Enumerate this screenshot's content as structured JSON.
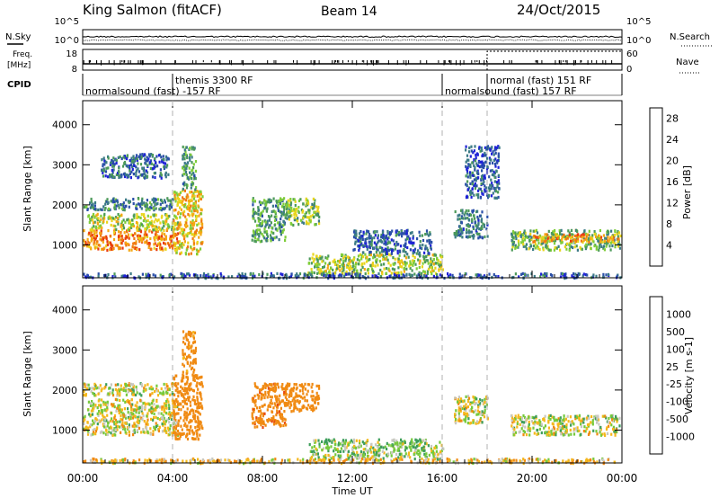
{
  "header": {
    "station": "King Salmon (fitACF)",
    "beam": "Beam 14",
    "date": "24/Oct/2015"
  },
  "top_panels": {
    "nsky_label": "N.Sky",
    "nsky_ticks": [
      "10^5",
      "10^0"
    ],
    "nsearch_label": "N.Search",
    "nsearch_ticks": [
      "10^5",
      "10^0"
    ],
    "freq_label_1": "Freq.",
    "freq_label_2": "[MHz]",
    "freq_ticks": [
      "18",
      "8"
    ],
    "nave_label": "Nave",
    "nave_ticks": [
      "60",
      "0"
    ],
    "cpid_label": "CPID",
    "cpid_segments": [
      {
        "label": "normalsound (fast) -157 RF",
        "start_hour": 0,
        "end_hour": 4
      },
      {
        "label": "themis 3300 RF",
        "start_hour": 4,
        "end_hour": 16
      },
      {
        "label": "normalsound (fast) 157 RF",
        "start_hour": 16,
        "end_hour": 18
      },
      {
        "label": "normal (fast) 151 RF",
        "start_hour": 18,
        "end_hour": 24
      }
    ]
  },
  "chart_data": [
    {
      "type": "heatmap",
      "name": "power",
      "ylabel": "Slant Range [km]",
      "xlabel": "Time UT",
      "xlim": [
        0,
        24
      ],
      "ylim": [
        180,
        4600
      ],
      "yticks": [
        "1000",
        "2000",
        "3000",
        "4000"
      ],
      "colorbar_label": "Power [dB]",
      "colorbar_ticks": [
        "4",
        "8",
        "12",
        "16",
        "20",
        "24",
        "28"
      ],
      "colorbar_range": [
        0,
        30
      ],
      "colors": [
        "#1e22d6",
        "#2a4fa8",
        "#3b7a86",
        "#4c9a5a",
        "#7fcd3a",
        "#e8d51c",
        "#f5a814",
        "#f07a12",
        "#e83a10",
        "#d81010"
      ],
      "regions": [
        {
          "t": [
            0.0,
            4.2
          ],
          "r": [
            900,
            1400
          ],
          "p": 22
        },
        {
          "t": [
            0.2,
            4.2
          ],
          "r": [
            1400,
            1800
          ],
          "p": 15
        },
        {
          "t": [
            0.0,
            4.0
          ],
          "r": [
            1900,
            2200
          ],
          "p": 8
        },
        {
          "t": [
            0.8,
            3.8
          ],
          "r": [
            2700,
            3300
          ],
          "p": 6
        },
        {
          "t": [
            4.0,
            5.3
          ],
          "r": [
            800,
            2400
          ],
          "p": 18
        },
        {
          "t": [
            4.4,
            5.0
          ],
          "r": [
            2400,
            3500
          ],
          "p": 10
        },
        {
          "t": [
            7.5,
            9.0
          ],
          "r": [
            1100,
            2200
          ],
          "p": 10
        },
        {
          "t": [
            9.0,
            10.5
          ],
          "r": [
            1500,
            2200
          ],
          "p": 13
        },
        {
          "t": [
            10.0,
            16.0
          ],
          "r": [
            300,
            800
          ],
          "p": 14
        },
        {
          "t": [
            12.0,
            15.5
          ],
          "r": [
            800,
            1400
          ],
          "p": 6
        },
        {
          "t": [
            16.5,
            18.0
          ],
          "r": [
            1200,
            1900
          ],
          "p": 7
        },
        {
          "t": [
            17.0,
            18.5
          ],
          "r": [
            2200,
            3500
          ],
          "p": 5
        },
        {
          "t": [
            19.0,
            23.9
          ],
          "r": [
            900,
            1400
          ],
          "p": 12
        },
        {
          "t": [
            20.0,
            23.9
          ],
          "r": [
            1100,
            1300
          ],
          "p": 20
        },
        {
          "t": [
            0.0,
            23.9
          ],
          "r": [
            200,
            320
          ],
          "p": 5
        }
      ]
    },
    {
      "type": "heatmap",
      "name": "velocity",
      "ylabel": "Slant Range [km]",
      "xlabel": "Time UT",
      "xlim": [
        0,
        24
      ],
      "ylim": [
        180,
        4600
      ],
      "yticks": [
        "1000",
        "2000",
        "3000",
        "4000"
      ],
      "xticks": [
        "00:00",
        "04:00",
        "08:00",
        "12:00",
        "16:00",
        "20:00",
        "00:00"
      ],
      "colorbar_label": "Velocity [m s-1]",
      "colorbar_ticks": [
        "1000",
        "500",
        "100",
        "25",
        "-25",
        "-100",
        "-500",
        "-1000"
      ],
      "colors": [
        "#2a3fc0",
        "#3b76b8",
        "#3d9e5a",
        "#76c93b",
        "#c8c8c0",
        "#c8c8c0",
        "#f5b81c",
        "#f08a12",
        "#e84a10",
        "#d81010"
      ],
      "regions": [
        {
          "t": [
            0.0,
            4.2
          ],
          "r": [
            900,
            1400
          ],
          "v": 0
        },
        {
          "t": [
            0.2,
            4.2
          ],
          "r": [
            1400,
            1800
          ],
          "v": 0
        },
        {
          "t": [
            0.0,
            4.0
          ],
          "r": [
            1900,
            2200
          ],
          "v": 1
        },
        {
          "t": [
            4.0,
            5.3
          ],
          "r": [
            800,
            2400
          ],
          "v": -300
        },
        {
          "t": [
            4.4,
            5.0
          ],
          "r": [
            2400,
            3500
          ],
          "v": -200
        },
        {
          "t": [
            7.5,
            9.0
          ],
          "r": [
            1100,
            2200
          ],
          "v": -400
        },
        {
          "t": [
            9.0,
            10.5
          ],
          "r": [
            1500,
            2200
          ],
          "v": -250
        },
        {
          "t": [
            10.0,
            16.0
          ],
          "r": [
            300,
            800
          ],
          "v": 60
        },
        {
          "t": [
            16.5,
            18.0
          ],
          "r": [
            1200,
            1900
          ],
          "v": 0
        },
        {
          "t": [
            19.0,
            23.9
          ],
          "r": [
            900,
            1400
          ],
          "v": 0
        },
        {
          "t": [
            0.0,
            23.9
          ],
          "r": [
            200,
            320
          ],
          "v": -60
        }
      ]
    }
  ]
}
